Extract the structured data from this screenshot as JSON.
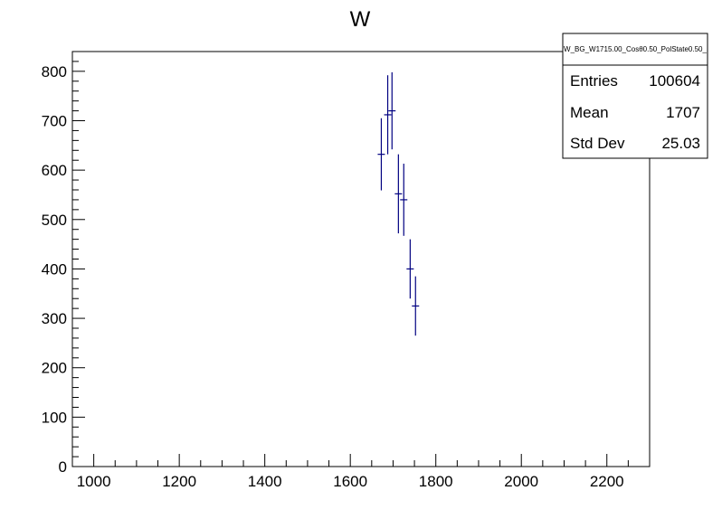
{
  "chart_data": {
    "type": "scatter",
    "title": "W",
    "xlabel": "",
    "ylabel": "",
    "xlim": [
      950,
      2300
    ],
    "ylim": [
      0,
      840
    ],
    "x_ticks": [
      1000,
      1200,
      1400,
      1600,
      1800,
      2000,
      2200
    ],
    "x_tick_labels": [
      "1000",
      "1200",
      "1400",
      "1600",
      "1800",
      "2000",
      "2200"
    ],
    "y_ticks": [
      0,
      100,
      200,
      300,
      400,
      500,
      600,
      700,
      800
    ],
    "y_tick_labels": [
      "0",
      "100",
      "200",
      "300",
      "400",
      "500",
      "600",
      "700",
      "800"
    ],
    "grid": false,
    "marker_color": "#000080",
    "series": [
      {
        "points": [
          {
            "x": 1672.5,
            "y": 632,
            "err": 73
          },
          {
            "x": 1687.5,
            "y": 712,
            "err": 80
          },
          {
            "x": 1697.5,
            "y": 720,
            "err": 78
          },
          {
            "x": 1712.5,
            "y": 552,
            "err": 80
          },
          {
            "x": 1725,
            "y": 540,
            "err": 73
          },
          {
            "x": 1740,
            "y": 400,
            "err": 60
          },
          {
            "x": 1752.5,
            "y": 325,
            "err": 60
          }
        ]
      }
    ],
    "stats_box": {
      "name": "W_BG_W1715.00_Cosθ0.50_PolState0.50_",
      "rows": [
        {
          "label": "Entries",
          "value": "100604"
        },
        {
          "label": "Mean",
          "value": "1707"
        },
        {
          "label": "Std Dev",
          "value": "25.03"
        }
      ]
    }
  }
}
